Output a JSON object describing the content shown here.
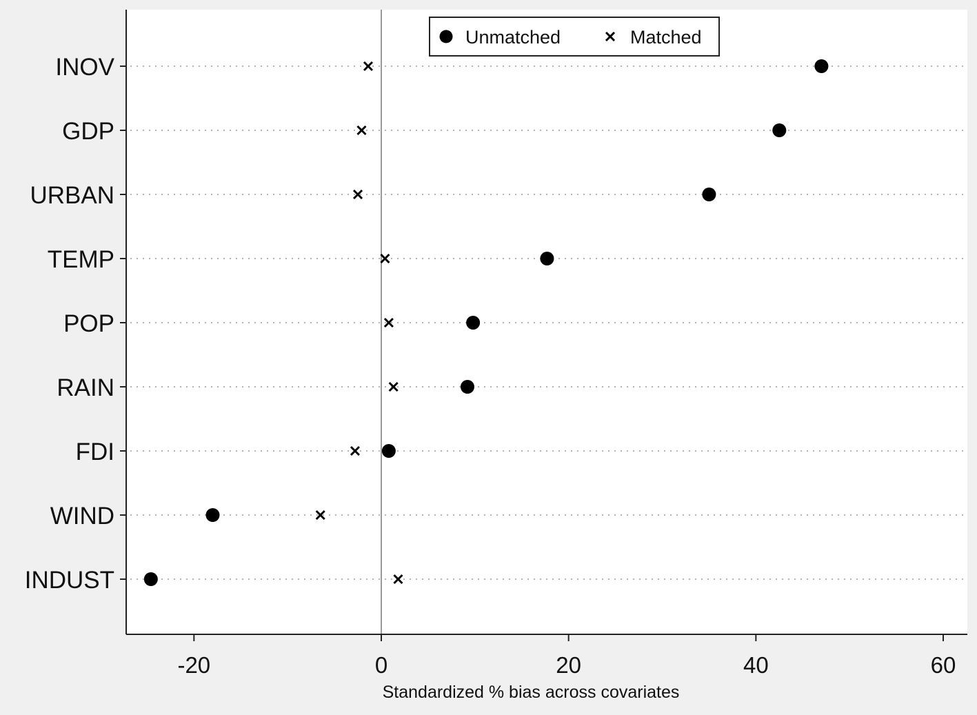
{
  "chart_data": {
    "type": "scatter",
    "orientation": "horizontal-dot",
    "xlabel": "Standardized % bias across covariates",
    "xlim": [
      -27,
      62
    ],
    "xticks": [
      -20,
      0,
      20,
      40,
      60
    ],
    "grid": "dotted horizontal lines at each covariate",
    "reference_line_x": 0,
    "legend_position": "top-center",
    "categories": [
      "INOV",
      "GDP",
      "URBAN",
      "TEMP",
      "POP",
      "RAIN",
      "FDI",
      "WIND",
      "INDUST"
    ],
    "series": [
      {
        "name": "Unmatched",
        "marker": "filled-circle",
        "values": [
          47.0,
          42.5,
          35.0,
          17.7,
          9.8,
          9.2,
          0.8,
          -18.0,
          -24.6
        ]
      },
      {
        "name": "Matched",
        "marker": "x-cross",
        "values": [
          -1.4,
          -2.1,
          -2.5,
          0.4,
          0.8,
          1.3,
          -2.8,
          -6.5,
          1.8
        ]
      }
    ],
    "colors": {
      "background": "#f0f0f0",
      "plot_background": "#ffffff",
      "marker": "#000000",
      "reference_line": "#9a9a9a",
      "grid": "#9a9a9a"
    }
  }
}
